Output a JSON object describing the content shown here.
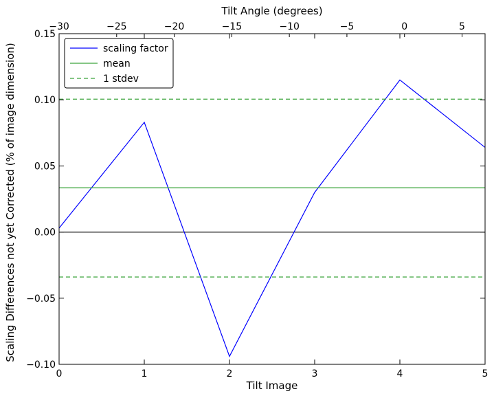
{
  "chart_data": {
    "type": "line",
    "title": "",
    "xlabel": "Tilt Image",
    "ylabel": "Scaling Differences not yet Corrected (% of image dimension)",
    "x2label": "Tilt Angle (degrees)",
    "xlim": [
      0,
      5
    ],
    "ylim": [
      -0.1,
      0.15
    ],
    "x2lim": [
      -30,
      7
    ],
    "xticks": [
      0,
      1,
      2,
      3,
      4,
      5
    ],
    "xtick_labels": [
      "0",
      "1",
      "2",
      "3",
      "4",
      "5"
    ],
    "yticks": [
      -0.1,
      -0.05,
      0.0,
      0.05,
      0.1,
      0.15
    ],
    "ytick_labels": [
      "−0.10",
      "−0.05",
      "0.00",
      "0.05",
      "0.10",
      "0.15"
    ],
    "x2ticks": [
      -30,
      -25,
      -20,
      -15,
      -10,
      -5,
      0,
      5
    ],
    "x2tick_labels": [
      "−30",
      "−25",
      "−20",
      "−15",
      "−10",
      "−5",
      "0",
      "5"
    ],
    "grid": false,
    "legend_position": "top-left",
    "series": [
      {
        "name": "scaling factor",
        "style": "solid",
        "color": "#0000ff",
        "x": [
          0,
          1,
          2,
          3,
          4,
          5
        ],
        "y": [
          0.003,
          0.083,
          -0.094,
          0.03,
          0.115,
          0.064
        ]
      },
      {
        "name": "mean",
        "style": "solid",
        "color": "#3ca53c",
        "x": [
          0,
          5
        ],
        "y": [
          0.0335,
          0.0335
        ]
      },
      {
        "name": "1 stdev",
        "style": "dashed",
        "color": "#3ca53c",
        "x": [
          0,
          5
        ],
        "y": [
          0.1005,
          0.1005
        ]
      },
      {
        "name": "",
        "style": "dashed",
        "color": "#3ca53c",
        "x": [
          0,
          5
        ],
        "y": [
          -0.034,
          -0.034
        ]
      }
    ],
    "reference_lines": [
      {
        "y": 0.0,
        "color": "#000000"
      }
    ]
  }
}
